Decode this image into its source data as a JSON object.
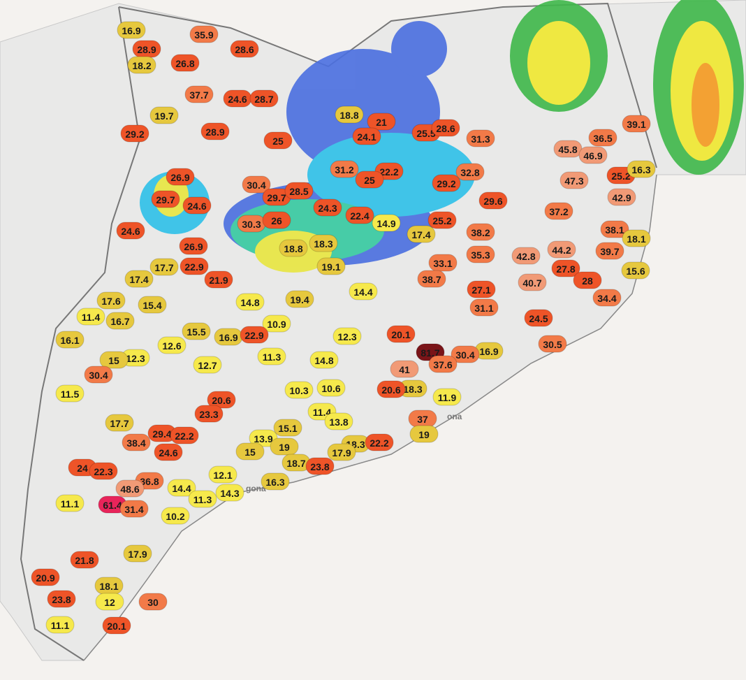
{
  "markers": [
    16.9,
    35.9,
    28.9,
    28.6,
    18.2,
    26.8,
    37.7,
    24.6,
    28.7,
    19.7,
    18.8,
    21,
    39.1,
    29.2,
    28.9,
    24.1,
    25.5,
    28.6,
    31.3,
    36.5,
    25,
    45.8,
    46.9,
    31.2,
    22.2,
    32.8,
    25.2,
    16.3,
    26.9,
    25,
    29.2,
    47.3,
    30.4,
    29.7,
    28.5,
    42.9,
    29.7,
    24.6,
    29.6,
    24.3,
    22.4,
    37.2,
    14.9,
    25.2,
    24.6,
    30.3,
    26,
    38.1,
    18.1,
    17.4,
    38.2,
    26.9,
    18.8,
    18.3,
    44.2,
    39.7,
    42.8,
    35.3,
    19.1,
    33.1,
    17.7,
    22.9,
    27.8,
    15.6,
    17.4,
    21.9,
    38.7,
    28,
    40.7,
    14.4,
    27.1,
    17.6,
    15.4,
    14.8,
    19.4,
    34.4,
    31.1,
    11.4,
    16.7,
    24.5,
    10.9,
    15.5,
    16.9,
    22.9,
    20.1,
    12.3,
    16.1,
    30.5,
    12.6,
    81.7,
    16.9,
    30.4,
    11.3,
    12.3,
    15,
    14.8,
    37.6,
    12.7,
    41,
    30.4,
    10.3,
    10.6,
    18.3,
    20.6,
    11.5,
    20.6,
    11.9,
    23.3,
    11.4,
    13.8,
    37,
    17.7,
    15.1,
    29.4,
    22.2,
    19,
    38.4,
    13.9,
    19,
    18.3,
    22.2,
    24.6,
    15,
    17.9,
    18.7,
    23.8,
    24,
    22.3,
    12.1,
    36.8,
    48.6,
    14.4,
    14.3,
    16.3,
    11.3,
    11.1,
    61.4,
    31.4,
    10.2,
    17.9,
    21.8,
    20.9,
    18.1,
    23.8,
    12,
    30,
    11.1,
    20.1
  ],
  "place_labels": [
    "ona",
    "gona"
  ]
}
